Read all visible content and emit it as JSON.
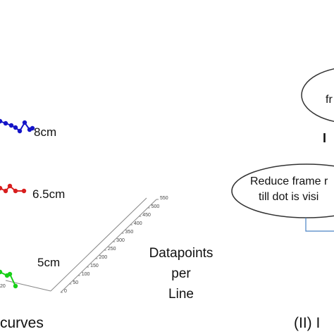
{
  "plot": {
    "curves": [
      {
        "label": "8cm",
        "color": "#1515c8"
      },
      {
        "label": "6.5cm",
        "color": "#d81e1e"
      },
      {
        "label": "5cm",
        "color": "#18d018"
      }
    ],
    "axis_ticks": [
      "0",
      "50",
      "100",
      "150",
      "200",
      "250",
      "300",
      "350",
      "400",
      "450",
      "500",
      "550"
    ],
    "left_tick": "20",
    "axis_title": [
      "Datapoints",
      "per",
      "Line"
    ],
    "caption": "curves"
  },
  "flowchart": {
    "top_node_fragment": "fr",
    "mid_fragment": "I",
    "process_node": [
      "Reduce frame r",
      "till dot is visi"
    ]
  },
  "caption_right": "(II) I"
}
